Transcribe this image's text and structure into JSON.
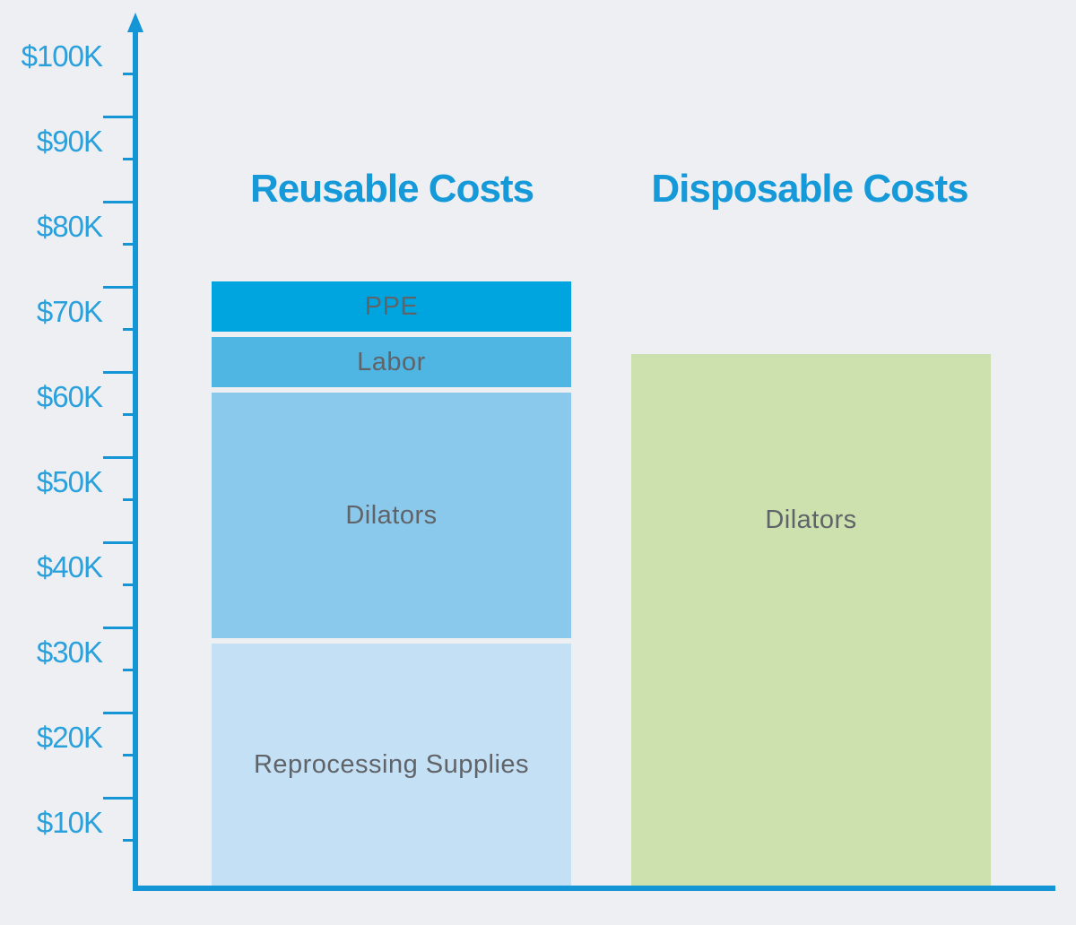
{
  "palette": {
    "background": "#EDEFF2",
    "axis": "#1496D6",
    "tick_label": "#2AA0DC",
    "title": "#1599D9",
    "bar_label": "#606468"
  },
  "chart_data": {
    "type": "bar",
    "subtype": "stacked-bar-comparison",
    "unit": "USD (thousands)",
    "grid": "off",
    "legend": "none",
    "yaxis": {
      "tick_labels": [
        "$100K",
        "$90K",
        "$80K",
        "$70K",
        "$60K",
        "$50K",
        "$40K",
        "$30K",
        "$20K",
        "$10K"
      ],
      "tick_values_k": [
        100,
        90,
        80,
        70,
        60,
        50,
        40,
        30,
        20,
        10
      ],
      "minor_ticks": "unlabeled long ticks at 5K midpoints",
      "range_k": [
        0,
        105
      ]
    },
    "groups": [
      {
        "title": "Reusable Costs",
        "total_k_approx": 76,
        "segments": [
          {
            "label": "PPE",
            "value_k": 6.5,
            "axis_top_k": 76,
            "color": "#00A5E0"
          },
          {
            "label": "Labor",
            "value_k": 6.5,
            "axis_top_k": 69.5,
            "color": "#4FB6E4"
          },
          {
            "label": "Dilators",
            "value_k": 29.5,
            "axis_top_k": 63,
            "color": "#8BC9EC"
          },
          {
            "label": "Reprocessing Supplies",
            "value_k": 33.5,
            "axis_top_k": 33.5,
            "color": "#C4E0F5"
          }
        ]
      },
      {
        "title": "Disposable Costs",
        "total_k_approx": 67,
        "segments": [
          {
            "label": "Dilators",
            "value_k": 67,
            "axis_top_k": 67.5,
            "color": "#CCE1AE"
          }
        ]
      }
    ]
  }
}
